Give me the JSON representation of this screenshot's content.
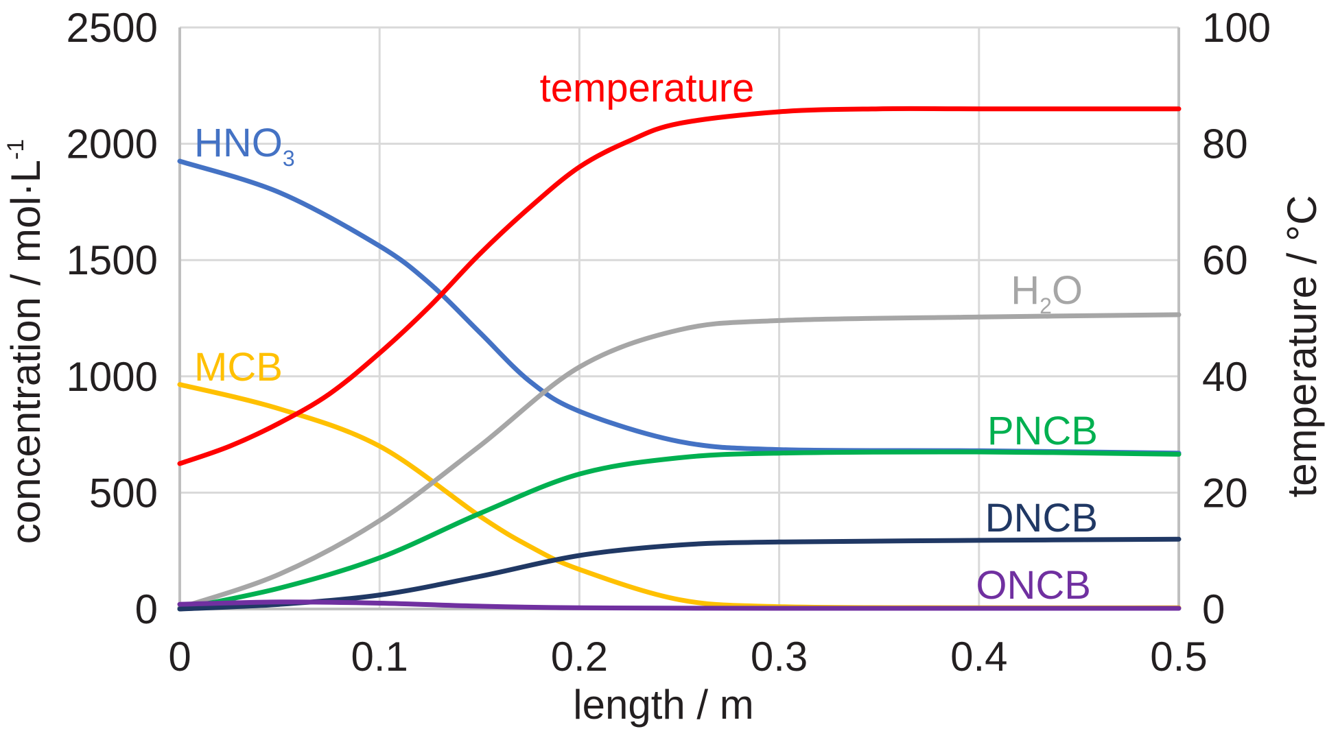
{
  "chart_data": {
    "type": "line",
    "x_label": "length / m",
    "y_label_left": "concentration / mol·L",
    "y_label_left_sup": "-1",
    "y_label_right": "temperature / °C",
    "x_range": [
      0,
      0.5
    ],
    "y_range_left": [
      0,
      2500
    ],
    "y_range_right": [
      0,
      100
    ],
    "x_ticks": [
      {
        "value": 0,
        "label": "0"
      },
      {
        "value": 0.1,
        "label": "0.1"
      },
      {
        "value": 0.2,
        "label": "0.2"
      },
      {
        "value": 0.3,
        "label": "0.3"
      },
      {
        "value": 0.4,
        "label": "0.4"
      },
      {
        "value": 0.5,
        "label": "0.5"
      }
    ],
    "y_ticks_left": [
      {
        "value": 0,
        "label": "0"
      },
      {
        "value": 500,
        "label": "500"
      },
      {
        "value": 1000,
        "label": "1000"
      },
      {
        "value": 1500,
        "label": "1500"
      },
      {
        "value": 2000,
        "label": "2000"
      },
      {
        "value": 2500,
        "label": "2500"
      }
    ],
    "y_ticks_right": [
      {
        "value": 0,
        "label": "0"
      },
      {
        "value": 20,
        "label": "20"
      },
      {
        "value": 40,
        "label": "40"
      },
      {
        "value": 60,
        "label": "60"
      },
      {
        "value": 80,
        "label": "80"
      },
      {
        "value": 100,
        "label": "100"
      }
    ],
    "grid": true,
    "series": [
      {
        "name": "HNO3",
        "label": "HNO",
        "label_sub": "3",
        "axis": "left",
        "color": "#4472c4",
        "x": [
          0,
          0.05,
          0.1,
          0.125,
          0.15,
          0.175,
          0.2,
          0.25,
          0.3,
          0.4,
          0.5
        ],
        "y": [
          1925,
          1790,
          1560,
          1400,
          1190,
          980,
          850,
          720,
          685,
          680,
          670
        ]
      },
      {
        "name": "MCB",
        "label": "MCB",
        "label_sub": "",
        "axis": "left",
        "color": "#ffc000",
        "x": [
          0,
          0.05,
          0.1,
          0.15,
          0.175,
          0.2,
          0.25,
          0.3,
          0.4,
          0.5
        ],
        "y": [
          965,
          860,
          700,
          400,
          270,
          170,
          40,
          10,
          5,
          5
        ]
      },
      {
        "name": "H2O",
        "label": "H",
        "label_sub": "2",
        "label_after": "O",
        "axis": "left",
        "color": "#a6a6a6",
        "x": [
          0,
          0.05,
          0.1,
          0.15,
          0.2,
          0.25,
          0.3,
          0.4,
          0.5
        ],
        "y": [
          5,
          150,
          380,
          700,
          1040,
          1200,
          1240,
          1255,
          1265
        ]
      },
      {
        "name": "PNCB",
        "label": "PNCB",
        "label_sub": "",
        "axis": "left",
        "color": "#00b050",
        "x": [
          0,
          0.05,
          0.1,
          0.15,
          0.2,
          0.25,
          0.3,
          0.4,
          0.5
        ],
        "y": [
          0,
          90,
          220,
          410,
          580,
          650,
          670,
          675,
          665
        ]
      },
      {
        "name": "DNCB",
        "label": "DNCB",
        "label_sub": "",
        "axis": "left",
        "color": "#203864",
        "x": [
          0,
          0.05,
          0.1,
          0.15,
          0.2,
          0.25,
          0.3,
          0.4,
          0.5
        ],
        "y": [
          0,
          20,
          60,
          140,
          230,
          275,
          288,
          295,
          300
        ]
      },
      {
        "name": "ONCB",
        "label": "ONCB",
        "label_sub": "",
        "axis": "left",
        "color": "#7030a0",
        "x": [
          0,
          0.05,
          0.1,
          0.15,
          0.2,
          0.3,
          0.4,
          0.5
        ],
        "y": [
          20,
          30,
          25,
          12,
          5,
          3,
          3,
          3
        ]
      },
      {
        "name": "temperature",
        "label": "temperature",
        "label_sub": "",
        "axis": "right",
        "color": "#ff0000",
        "x": [
          0,
          0.025,
          0.05,
          0.075,
          0.1,
          0.125,
          0.15,
          0.175,
          0.2,
          0.225,
          0.25,
          0.3,
          0.35,
          0.4,
          0.5
        ],
        "y": [
          25,
          28,
          32,
          37,
          44,
          52,
          61,
          69,
          76,
          80.5,
          83.5,
          85.5,
          86,
          86,
          86
        ]
      }
    ]
  }
}
